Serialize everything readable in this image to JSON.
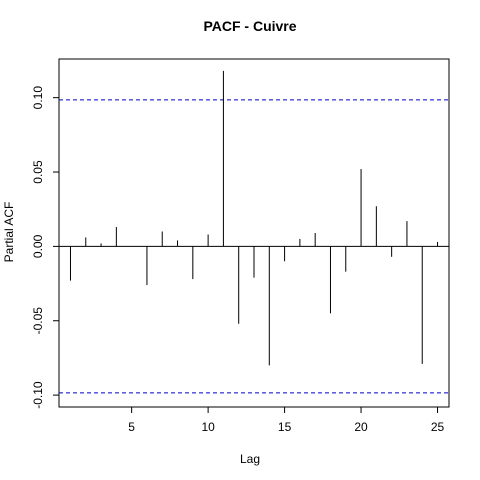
{
  "chart_data": {
    "type": "bar",
    "title": "PACF - Cuivre",
    "xlabel": "Lag",
    "ylabel": "Partial ACF",
    "xlim": [
      0.25,
      25.75
    ],
    "ylim": [
      -0.108,
      0.126
    ],
    "xticks": [
      5,
      10,
      15,
      20,
      25
    ],
    "yticks": [
      -0.1,
      -0.05,
      0.0,
      0.05,
      0.1
    ],
    "ytick_labels": [
      "-0.10",
      "-0.05",
      "0.00",
      "0.05",
      "0.10"
    ],
    "confidence_bound": 0.0985,
    "grid": false,
    "colors": {
      "bars": "#000000",
      "confidence": "#0000cc",
      "axis": "#000000"
    },
    "lags": [
      1,
      2,
      3,
      4,
      5,
      6,
      7,
      8,
      9,
      10,
      11,
      12,
      13,
      14,
      15,
      16,
      17,
      18,
      19,
      20,
      21,
      22,
      23,
      24,
      25
    ],
    "values": [
      -0.023,
      0.006,
      0.002,
      0.013,
      0.0,
      -0.026,
      0.01,
      0.004,
      -0.022,
      0.008,
      0.118,
      -0.052,
      -0.021,
      -0.08,
      -0.01,
      0.005,
      0.009,
      -0.045,
      -0.017,
      0.052,
      0.027,
      -0.007,
      0.017,
      -0.079,
      0.003
    ]
  }
}
